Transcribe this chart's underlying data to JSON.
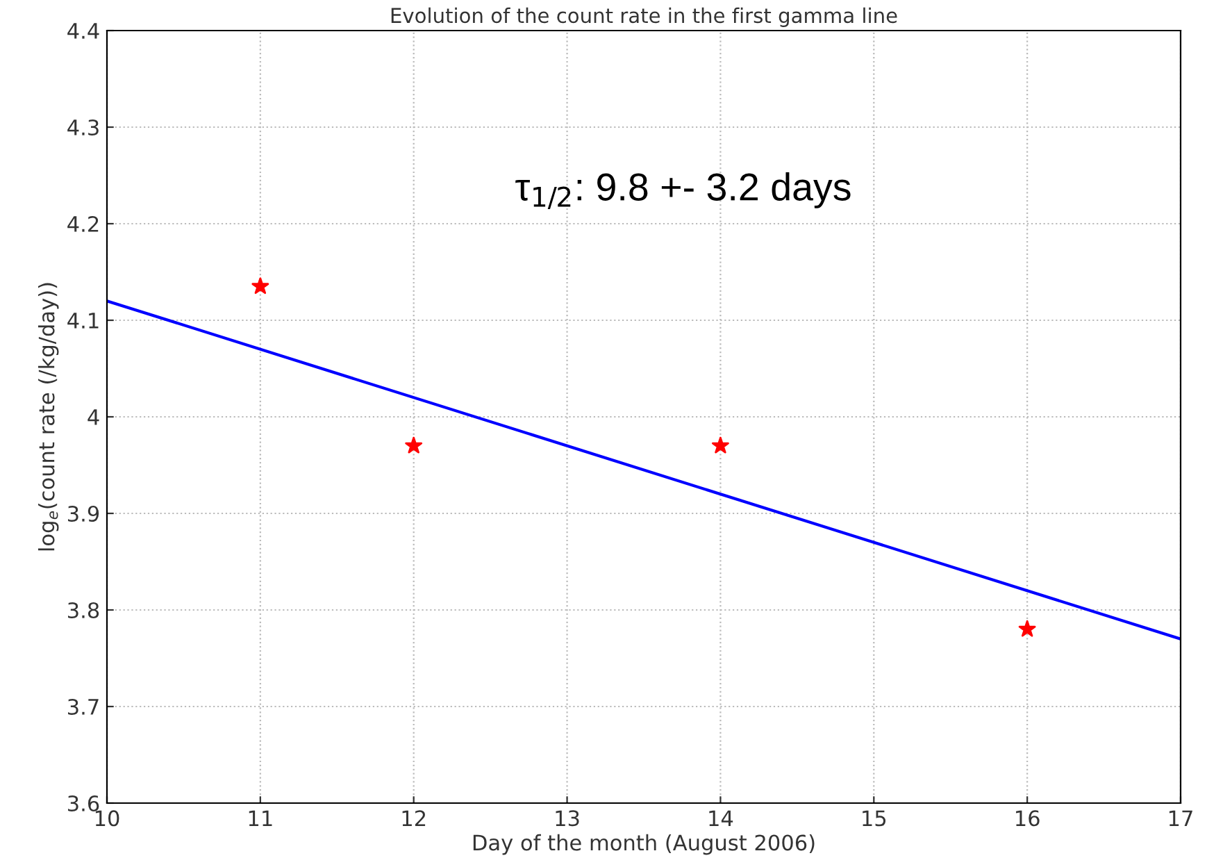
{
  "chart_data": {
    "type": "scatter",
    "title": "Evolution of the count rate in the first gamma line",
    "xlabel": "Day of the month (August 2006)",
    "ylabel": "log$_{e}$(count rate (/kg/day))",
    "series": [
      {
        "color": "#ff0000",
        "marker": "star",
        "x": [
          11,
          12,
          14,
          16
        ],
        "values": [
          4.135,
          3.97,
          3.97,
          3.78
        ]
      },
      {
        "type": "line",
        "color": "#0000ff",
        "marker": "none",
        "line_style": "solid",
        "x": [
          10,
          17
        ],
        "values": [
          4.12,
          3.77
        ]
      }
    ],
    "xlim": [
      10,
      17
    ],
    "xticks": [
      10,
      11,
      12,
      13,
      14,
      15,
      16,
      17
    ],
    "ylim": [
      3.6,
      4.4
    ],
    "yticks": [
      3.6,
      3.7,
      3.8,
      3.9,
      4,
      4.1,
      4.2,
      4.3,
      4.4
    ],
    "grid": true,
    "annotations": [
      "τ$_{1/2}$: 9.8 +- 3.2 days"
    ]
  }
}
